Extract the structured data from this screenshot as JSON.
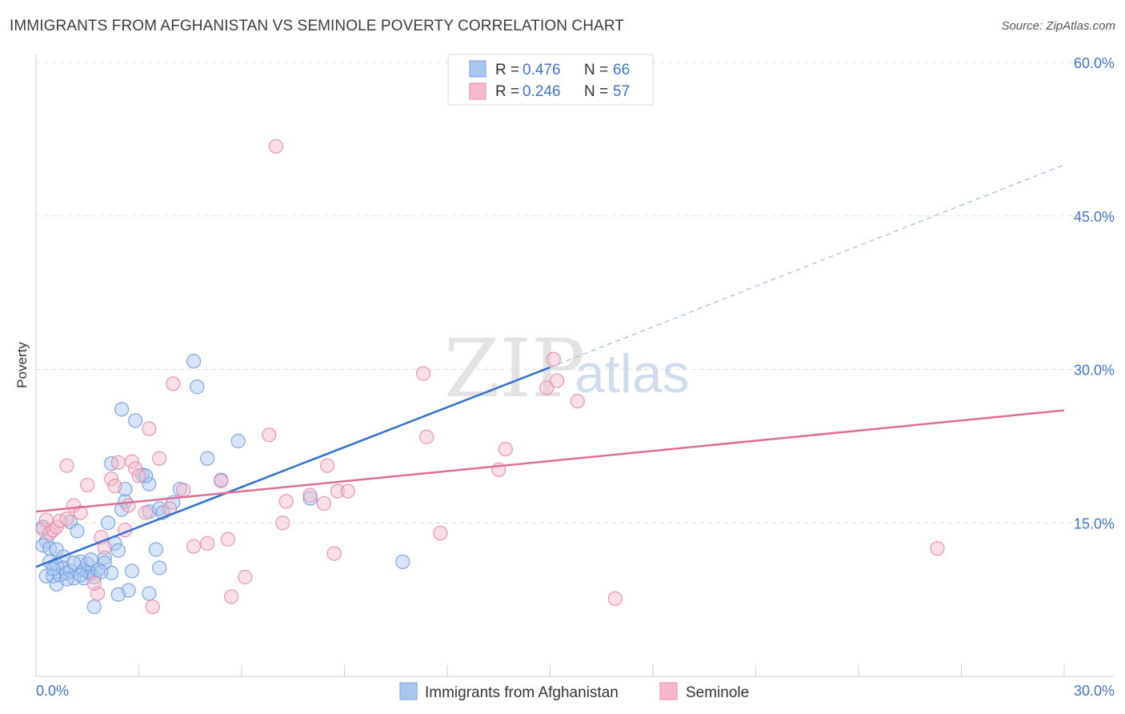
{
  "title": "IMMIGRANTS FROM AFGHANISTAN VS SEMINOLE POVERTY CORRELATION CHART",
  "source": "Source: ZipAtlas.com",
  "watermark": {
    "zip": "ZIP",
    "atlas": "atlas"
  },
  "chart_data": {
    "type": "scatter",
    "ylabel": "Poverty",
    "xlim": [
      0,
      30
    ],
    "ylim": [
      0,
      60
    ],
    "x_tick_labels": [
      {
        "value": 0,
        "label": "0.0%"
      },
      {
        "value": 30,
        "label": "30.0%"
      }
    ],
    "y_tick_labels": [
      {
        "value": 15,
        "label": "15.0%"
      },
      {
        "value": 30,
        "label": "30.0%"
      },
      {
        "value": 45,
        "label": "45.0%"
      },
      {
        "value": 60,
        "label": "60.0%"
      }
    ],
    "legend": [
      {
        "r_label": "R =",
        "r": "0.476",
        "n_label": "N =",
        "n": "66"
      },
      {
        "r_label": "R =",
        "r": "0.246",
        "n_label": "N =",
        "n": "57"
      }
    ],
    "series": [
      {
        "name": "Immigrants from Afghanistan",
        "color": "#6f9fe0",
        "fill": "#a9c6ef",
        "line_color": "#2f6fd0",
        "trend": {
          "x0": 0,
          "y0": 10.7,
          "x1": 15,
          "y1": 30.2,
          "dash_to_x": 30,
          "dash_to_y": 50
        },
        "points": [
          [
            0.2,
            14.6
          ],
          [
            0.3,
            13.2
          ],
          [
            0.2,
            12.8
          ],
          [
            0.4,
            12.5
          ],
          [
            0.6,
            12.4
          ],
          [
            0.4,
            11.2
          ],
          [
            0.6,
            10.9
          ],
          [
            0.8,
            11.7
          ],
          [
            0.3,
            9.8
          ],
          [
            0.5,
            9.8
          ],
          [
            0.6,
            9.0
          ],
          [
            0.7,
            9.9
          ],
          [
            0.8,
            10.6
          ],
          [
            0.9,
            10.1
          ],
          [
            1.0,
            10.3
          ],
          [
            1.1,
            9.6
          ],
          [
            1.0,
            15.1
          ],
          [
            1.2,
            14.2
          ],
          [
            1.3,
            11.2
          ],
          [
            1.4,
            10.4
          ],
          [
            1.4,
            9.6
          ],
          [
            1.5,
            10.2
          ],
          [
            1.6,
            10.1
          ],
          [
            1.7,
            9.7
          ],
          [
            1.5,
            11.0
          ],
          [
            1.8,
            10.4
          ],
          [
            1.7,
            6.8
          ],
          [
            2.0,
            11.6
          ],
          [
            2.1,
            15.0
          ],
          [
            2.2,
            10.1
          ],
          [
            2.3,
            13.0
          ],
          [
            2.4,
            12.3
          ],
          [
            2.2,
            20.8
          ],
          [
            2.6,
            17.1
          ],
          [
            2.5,
            16.3
          ],
          [
            2.6,
            18.3
          ],
          [
            2.8,
            10.3
          ],
          [
            2.7,
            8.4
          ],
          [
            2.4,
            8.0
          ],
          [
            3.3,
            8.1
          ],
          [
            3.6,
            10.6
          ],
          [
            3.5,
            12.4
          ],
          [
            3.3,
            16.1
          ],
          [
            3.6,
            16.4
          ],
          [
            3.3,
            18.8
          ],
          [
            3.1,
            19.7
          ],
          [
            3.2,
            19.6
          ],
          [
            2.5,
            26.1
          ],
          [
            2.9,
            25.0
          ],
          [
            4.2,
            18.3
          ],
          [
            5.0,
            21.3
          ],
          [
            5.4,
            19.2
          ],
          [
            4.6,
            30.8
          ],
          [
            4.7,
            28.3
          ],
          [
            5.9,
            23.0
          ],
          [
            8.0,
            17.4
          ],
          [
            10.7,
            11.2
          ],
          [
            3.7,
            16.0
          ],
          [
            4.0,
            17.0
          ],
          [
            2.0,
            11.1
          ],
          [
            1.1,
            11.1
          ],
          [
            1.3,
            9.9
          ],
          [
            0.9,
            9.5
          ],
          [
            1.9,
            10.2
          ],
          [
            0.5,
            10.5
          ],
          [
            1.6,
            11.4
          ]
        ]
      },
      {
        "name": "Seminole",
        "color": "#e889aa",
        "fill": "#f5b8cc",
        "line_color": "#df6d96",
        "trend": {
          "x0": 0,
          "y0": 16.1,
          "x1": 30,
          "y1": 26.0
        },
        "points": [
          [
            0.2,
            14.4
          ],
          [
            0.4,
            14.0
          ],
          [
            0.5,
            14.3
          ],
          [
            0.6,
            14.6
          ],
          [
            0.7,
            15.2
          ],
          [
            0.9,
            15.4
          ],
          [
            1.1,
            16.7
          ],
          [
            1.3,
            16.0
          ],
          [
            1.5,
            18.7
          ],
          [
            0.9,
            20.6
          ],
          [
            1.8,
            8.1
          ],
          [
            1.7,
            9.1
          ],
          [
            1.9,
            13.6
          ],
          [
            2.0,
            12.6
          ],
          [
            2.2,
            19.3
          ],
          [
            2.3,
            18.6
          ],
          [
            2.4,
            20.9
          ],
          [
            2.6,
            14.3
          ],
          [
            2.7,
            16.7
          ],
          [
            2.8,
            21.0
          ],
          [
            2.9,
            20.3
          ],
          [
            3.0,
            19.6
          ],
          [
            3.2,
            16.0
          ],
          [
            3.3,
            24.2
          ],
          [
            3.4,
            6.8
          ],
          [
            3.6,
            21.3
          ],
          [
            3.9,
            16.4
          ],
          [
            4.0,
            28.6
          ],
          [
            4.3,
            18.2
          ],
          [
            4.6,
            12.7
          ],
          [
            5.0,
            13.0
          ],
          [
            5.4,
            19.1
          ],
          [
            5.6,
            13.4
          ],
          [
            5.7,
            7.8
          ],
          [
            6.1,
            9.7
          ],
          [
            6.8,
            23.6
          ],
          [
            7.0,
            51.8
          ],
          [
            7.2,
            15.0
          ],
          [
            7.3,
            17.1
          ],
          [
            8.0,
            17.7
          ],
          [
            8.4,
            16.9
          ],
          [
            8.5,
            20.6
          ],
          [
            8.7,
            12.0
          ],
          [
            8.8,
            18.1
          ],
          [
            9.1,
            18.1
          ],
          [
            11.3,
            29.6
          ],
          [
            11.4,
            23.4
          ],
          [
            11.8,
            14.0
          ],
          [
            13.5,
            20.2
          ],
          [
            13.7,
            22.2
          ],
          [
            14.9,
            28.2
          ],
          [
            15.1,
            31.0
          ],
          [
            15.2,
            28.9
          ],
          [
            15.8,
            26.9
          ],
          [
            16.9,
            7.6
          ],
          [
            26.3,
            12.5
          ],
          [
            0.3,
            15.3
          ]
        ]
      }
    ]
  }
}
